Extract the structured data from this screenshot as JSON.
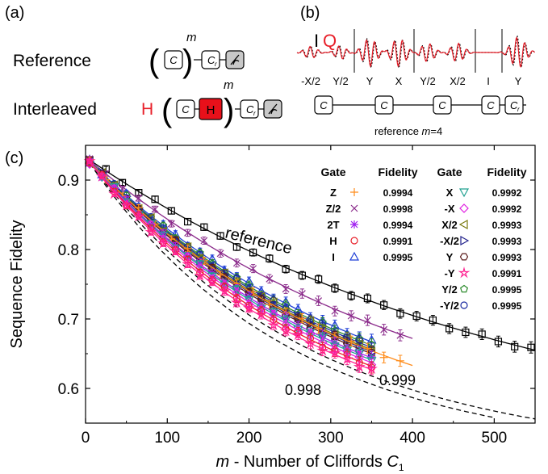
{
  "panel_a": {
    "label": "(a)",
    "reference_label": "Reference",
    "interleaved_label": "Interleaved",
    "interleaved_gate": "H",
    "exponent": "m",
    "clifford": "C",
    "recovery": "C",
    "recovery_sub": "r"
  },
  "panel_b": {
    "label": "(b)",
    "legend_i": "I",
    "legend_q": "Q",
    "pulse_labels": [
      "-X/2",
      "Y/2",
      "Y",
      "X",
      "Y/2",
      "X/2",
      "I",
      "Y"
    ],
    "clifford": "C",
    "recovery": "C",
    "recovery_sub": "r",
    "caption_prefix": "reference ",
    "caption_m": "m",
    "caption_suffix": "=4"
  },
  "chart_data": {
    "type": "scatter",
    "panel_label": "(c)",
    "xlabel_prefix": "m",
    "xlabel_text": " - Number of Cliffords ",
    "xlabel_c": "C",
    "xlabel_sub": "1",
    "ylabel": "Sequence Fidelity",
    "xlim": [
      0,
      550
    ],
    "ylim": [
      0.55,
      0.95
    ],
    "xticks": [
      0,
      100,
      200,
      300,
      400,
      500
    ],
    "yticks": [
      0.6,
      0.7,
      0.8,
      0.9
    ],
    "grid": false,
    "annotations": {
      "reference": "reference",
      "bound_998": "0.998",
      "bound_999": "0.999"
    },
    "table_headers": {
      "gate": "Gate",
      "fidelity": "Fidelity"
    },
    "legend_left": [
      {
        "gate": "Z",
        "fidelity": "0.9994",
        "marker": "plus",
        "color": "#ff8c1a"
      },
      {
        "gate": "Z/2",
        "fidelity": "0.9998",
        "marker": "x",
        "color": "#8a2a8a"
      },
      {
        "gate": "2T",
        "fidelity": "0.9994",
        "marker": "asterisk",
        "color": "#a020f0"
      },
      {
        "gate": "H",
        "fidelity": "0.9991",
        "marker": "circle",
        "color": "#e8202a"
      },
      {
        "gate": "I",
        "fidelity": "0.9995",
        "marker": "triangle-up",
        "color": "#1f3fd6"
      }
    ],
    "legend_right": [
      {
        "gate": "X",
        "fidelity": "0.9992",
        "marker": "triangle-down",
        "color": "#20a090"
      },
      {
        "gate": "-X",
        "fidelity": "0.9992",
        "marker": "diamond",
        "color": "#e020e0"
      },
      {
        "gate": "X/2",
        "fidelity": "0.9993",
        "marker": "triangle-left",
        "color": "#7a7a10"
      },
      {
        "gate": "-X/2",
        "fidelity": "0.9993",
        "marker": "triangle-right",
        "color": "#20208a"
      },
      {
        "gate": "Y",
        "fidelity": "0.9993",
        "marker": "hexagon",
        "color": "#5a1a1a"
      },
      {
        "gate": "-Y",
        "fidelity": "0.9991",
        "marker": "star",
        "color": "#ff2090"
      },
      {
        "gate": "Y/2",
        "fidelity": "0.9995",
        "marker": "pentagon",
        "color": "#2a8a2a"
      },
      {
        "gate": "-Y/2",
        "fidelity": "0.9995",
        "marker": "circle",
        "color": "#1a2aa0"
      }
    ],
    "series": [
      {
        "marker": "square",
        "color": "#000000",
        "x_end": 550,
        "f_end": 0.655,
        "dashed": false
      },
      {
        "marker": "x",
        "color": "#8a2a8a",
        "x_end": 400,
        "f_end": 0.672,
        "dashed": false
      },
      {
        "marker": "triangle-up",
        "color": "#1f3fd6",
        "x_end": 350,
        "f_end": 0.667,
        "dashed": false
      },
      {
        "marker": "pentagon",
        "color": "#2a8a2a",
        "x_end": 350,
        "f_end": 0.662,
        "dashed": false
      },
      {
        "marker": "circle",
        "color": "#1a2aa0",
        "x_end": 350,
        "f_end": 0.659,
        "dashed": false
      },
      {
        "marker": "triangle-left",
        "color": "#7a7a10",
        "x_end": 350,
        "f_end": 0.656,
        "dashed": false
      },
      {
        "marker": "triangle-right",
        "color": "#20208a",
        "x_end": 350,
        "f_end": 0.653,
        "dashed": false
      },
      {
        "marker": "hexagon",
        "color": "#5a1a1a",
        "x_end": 350,
        "f_end": 0.65,
        "dashed": false
      },
      {
        "marker": "plus",
        "color": "#ff8c1a",
        "x_end": 400,
        "f_end": 0.633,
        "dashed": false
      },
      {
        "marker": "asterisk",
        "color": "#a020f0",
        "x_end": 350,
        "f_end": 0.644,
        "dashed": false
      },
      {
        "marker": "triangle-down",
        "color": "#20a090",
        "x_end": 350,
        "f_end": 0.641,
        "dashed": false
      },
      {
        "marker": "diamond",
        "color": "#e020e0",
        "x_end": 350,
        "f_end": 0.637,
        "dashed": false
      },
      {
        "marker": "circle",
        "color": "#e8202a",
        "x_end": 350,
        "f_end": 0.632,
        "dashed": false
      },
      {
        "marker": "star",
        "color": "#ff2090",
        "x_end": 350,
        "f_end": 0.627,
        "dashed": false
      }
    ],
    "bounds": [
      {
        "label": "0.998",
        "x_end": 500,
        "f_end": 0.558
      },
      {
        "label": "0.999",
        "x_end": 550,
        "f_end": 0.556
      }
    ]
  }
}
